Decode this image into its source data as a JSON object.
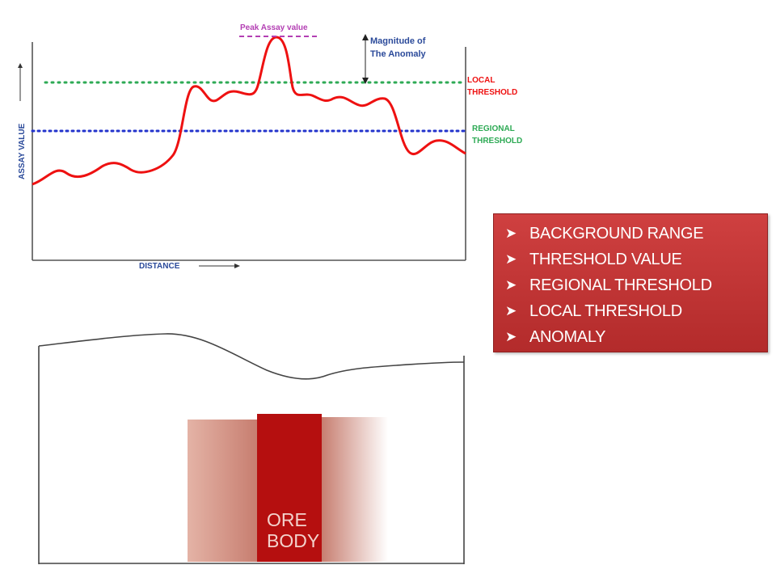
{
  "labels": {
    "peak": "Peak Assay value",
    "magnitude": [
      "Magnitude of",
      "The Anomaly"
    ],
    "local": [
      "LOCAL",
      "THRESHOLD"
    ],
    "regional": [
      "REGIONAL",
      "THRESHOLD"
    ],
    "yaxis": "ASSAY VALUE",
    "xaxis": "DISTANCE",
    "ore": [
      "ORE",
      "BODY"
    ]
  },
  "list": {
    "bullet": "➤",
    "items": [
      "BACKGROUND RANGE",
      "THRESHOLD VALUE",
      "REGIONAL THRESHOLD",
      "LOCAL THRESHOLD",
      "ANOMALY"
    ]
  },
  "colors": {
    "curve": "#ee1111",
    "local_threshold": "#2eaa55",
    "regional_threshold": "#2233cc",
    "peak_label": "#b33fb3",
    "axis_label": "#2b4a9a",
    "ore_body": "#b50f0f",
    "callout": "#c23535"
  }
}
